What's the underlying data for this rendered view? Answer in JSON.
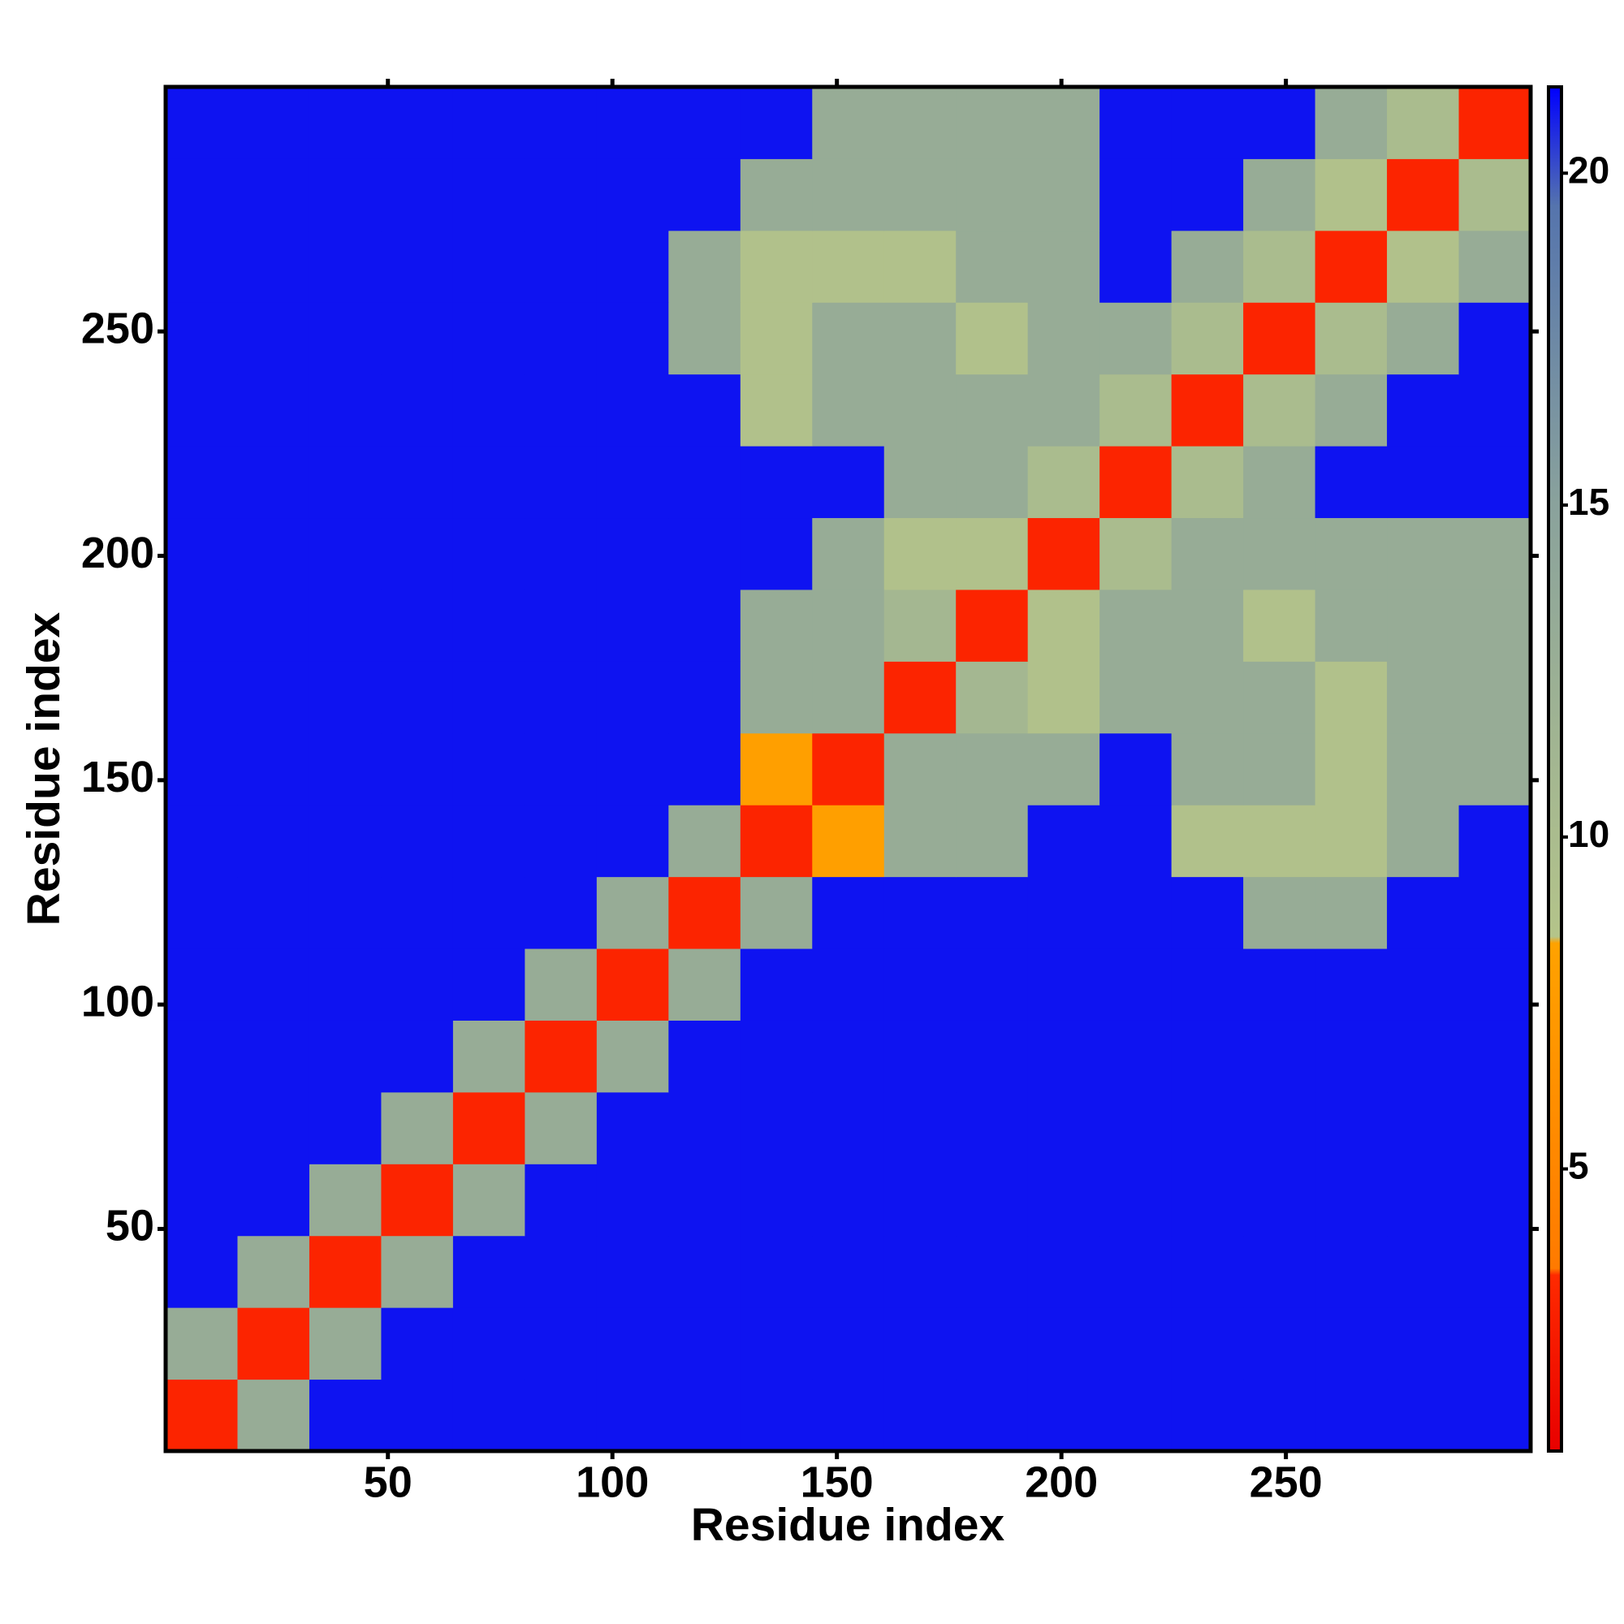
{
  "chart_data": {
    "type": "heatmap",
    "x_label": "Residue index",
    "y_label": "Residue index",
    "bins": [
      0.5,
      16.5,
      32.5,
      48.5,
      64.5,
      80.5,
      96.5,
      112.5,
      128.5,
      144.5,
      160.5,
      176.5,
      192.5,
      208.5,
      224.5,
      240.5,
      256.5,
      272.5,
      288.5,
      304.5
    ],
    "xlim": [
      0.5,
      304.5
    ],
    "ylim": [
      0.5,
      304.5
    ],
    "xticks": [
      50,
      100,
      150,
      200,
      250
    ],
    "yticks": [
      50,
      100,
      150,
      200,
      250
    ],
    "z": [
      [
        3,
        13,
        21,
        21,
        21,
        21,
        21,
        21,
        21,
        21,
        21,
        21,
        21,
        21,
        21,
        21,
        21,
        21,
        21
      ],
      [
        13,
        3,
        13,
        21,
        21,
        21,
        21,
        21,
        21,
        21,
        21,
        21,
        21,
        21,
        21,
        21,
        21,
        21,
        21
      ],
      [
        21,
        13,
        3,
        13,
        21,
        21,
        21,
        21,
        21,
        21,
        21,
        21,
        21,
        21,
        21,
        21,
        21,
        21,
        21
      ],
      [
        21,
        21,
        13,
        3,
        13,
        21,
        21,
        21,
        21,
        21,
        21,
        21,
        21,
        21,
        21,
        21,
        21,
        21,
        21
      ],
      [
        21,
        21,
        21,
        13,
        3,
        13,
        21,
        21,
        21,
        21,
        21,
        21,
        21,
        21,
        21,
        21,
        21,
        21,
        21
      ],
      [
        21,
        21,
        21,
        21,
        13,
        3,
        13,
        21,
        21,
        21,
        21,
        21,
        21,
        21,
        21,
        21,
        21,
        21,
        21
      ],
      [
        21,
        21,
        21,
        21,
        21,
        13,
        3,
        13,
        21,
        21,
        21,
        21,
        21,
        21,
        21,
        21,
        21,
        21,
        21
      ],
      [
        21,
        21,
        21,
        21,
        21,
        21,
        13,
        3,
        13,
        21,
        21,
        21,
        21,
        21,
        21,
        13,
        13,
        21,
        21
      ],
      [
        21,
        21,
        21,
        21,
        21,
        21,
        21,
        13,
        3,
        8,
        13,
        13,
        21,
        21,
        9,
        9,
        9,
        13,
        21
      ],
      [
        21,
        21,
        21,
        21,
        21,
        21,
        21,
        21,
        8,
        3,
        13,
        13,
        13,
        21,
        13,
        13,
        9,
        13,
        13
      ],
      [
        21,
        21,
        21,
        21,
        21,
        21,
        21,
        21,
        13,
        13,
        3,
        11,
        9,
        13,
        13,
        13,
        9,
        13,
        13
      ],
      [
        21,
        21,
        21,
        21,
        21,
        21,
        21,
        21,
        13,
        13,
        11,
        3,
        9,
        13,
        13,
        9,
        13,
        13,
        13
      ],
      [
        21,
        21,
        21,
        21,
        21,
        21,
        21,
        21,
        21,
        13,
        9,
        9,
        3,
        10,
        13,
        13,
        13,
        13,
        13
      ],
      [
        21,
        21,
        21,
        21,
        21,
        21,
        21,
        21,
        21,
        21,
        13,
        13,
        10,
        3,
        10,
        13,
        21,
        21,
        21
      ],
      [
        21,
        21,
        21,
        21,
        21,
        21,
        21,
        21,
        9,
        13,
        13,
        13,
        13,
        10,
        3,
        10,
        13,
        21,
        21
      ],
      [
        21,
        21,
        21,
        21,
        21,
        21,
        21,
        13,
        9,
        13,
        13,
        9,
        13,
        13,
        10,
        3,
        10,
        13,
        21
      ],
      [
        21,
        21,
        21,
        21,
        21,
        21,
        21,
        13,
        9,
        9,
        9,
        13,
        13,
        21,
        13,
        10,
        3,
        9,
        13
      ],
      [
        21,
        21,
        21,
        21,
        21,
        21,
        21,
        21,
        13,
        13,
        13,
        13,
        13,
        21,
        21,
        13,
        9,
        3,
        10
      ],
      [
        21,
        21,
        21,
        21,
        21,
        21,
        21,
        21,
        21,
        13,
        13,
        13,
        13,
        21,
        21,
        21,
        13,
        10,
        3
      ]
    ],
    "zlim": [
      0.75,
      21.3
    ],
    "zticks": [
      5,
      10,
      15,
      20
    ],
    "colorscale": [
      [
        0.75,
        "#e80000"
      ],
      [
        3.4,
        "#ff2a00"
      ],
      [
        3.5,
        "#ff7a00"
      ],
      [
        8.4,
        "#ffa200"
      ],
      [
        8.5,
        "#b4c48a"
      ],
      [
        15,
        "#8aa29c"
      ],
      [
        19.5,
        "#5574ad"
      ],
      [
        21.3,
        "#0000ff"
      ]
    ]
  }
}
